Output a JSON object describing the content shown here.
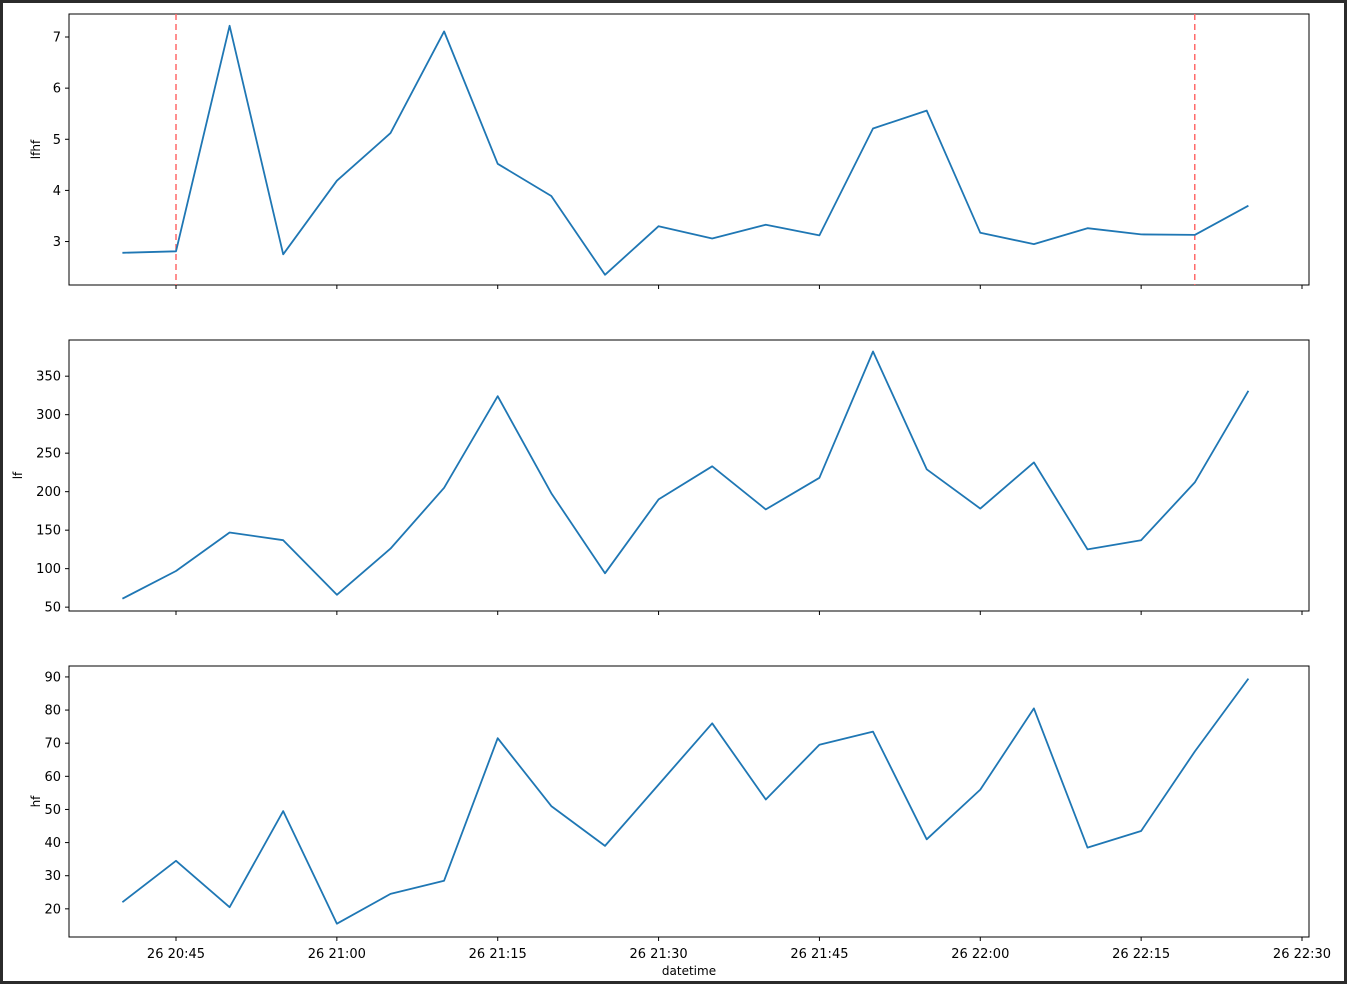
{
  "chart_data": {
    "type": "line",
    "x": [
      "20:40",
      "20:45",
      "20:50",
      "20:55",
      "21:00",
      "21:05",
      "21:10",
      "21:15",
      "21:20",
      "21:25",
      "21:30",
      "21:35",
      "21:40",
      "21:45",
      "21:50",
      "21:55",
      "22:00",
      "22:05",
      "22:10",
      "22:15",
      "22:20",
      "22:25"
    ],
    "xlabel": "datetime",
    "xticks": [
      "26 20:45",
      "26 21:00",
      "26 21:15",
      "26 21:30",
      "26 21:45",
      "26 22:00",
      "26 22:15",
      "26 22:30"
    ],
    "line_color": "#1f77b4",
    "vline_color": "#ff6a6a",
    "panels": [
      {
        "ylabel": "lfhf",
        "yticks": [
          "3",
          "4",
          "5",
          "6",
          "7"
        ],
        "ylim": [
          2.15,
          7.45
        ],
        "values": [
          2.78,
          2.81,
          7.22,
          2.75,
          4.19,
          5.12,
          7.11,
          4.52,
          3.89,
          2.35,
          3.3,
          3.06,
          3.33,
          3.12,
          5.21,
          5.56,
          3.17,
          2.95,
          3.26,
          3.14,
          3.13,
          3.7
        ],
        "vlines": [
          "20:45",
          "22:20"
        ]
      },
      {
        "ylabel": "lf",
        "yticks": [
          "50",
          "100",
          "150",
          "200",
          "250",
          "300",
          "350"
        ],
        "ylim": [
          45,
          397
        ],
        "values": [
          61,
          97,
          147,
          137,
          66,
          126,
          205,
          324,
          198,
          94,
          190,
          233,
          177,
          218,
          382,
          229,
          178,
          238,
          125,
          137,
          212,
          331
        ],
        "vlines": []
      },
      {
        "ylabel": "hf",
        "yticks": [
          "20",
          "30",
          "40",
          "50",
          "60",
          "70",
          "80",
          "90"
        ],
        "ylim": [
          11.5,
          93.3
        ],
        "values": [
          22,
          34.5,
          20.5,
          49.5,
          15.5,
          24.5,
          28.5,
          71.5,
          51,
          39,
          57.5,
          76,
          53,
          69.5,
          73.5,
          41,
          56,
          80.5,
          38.5,
          43.5,
          67.5,
          89.5
        ],
        "vlines": []
      }
    ]
  }
}
